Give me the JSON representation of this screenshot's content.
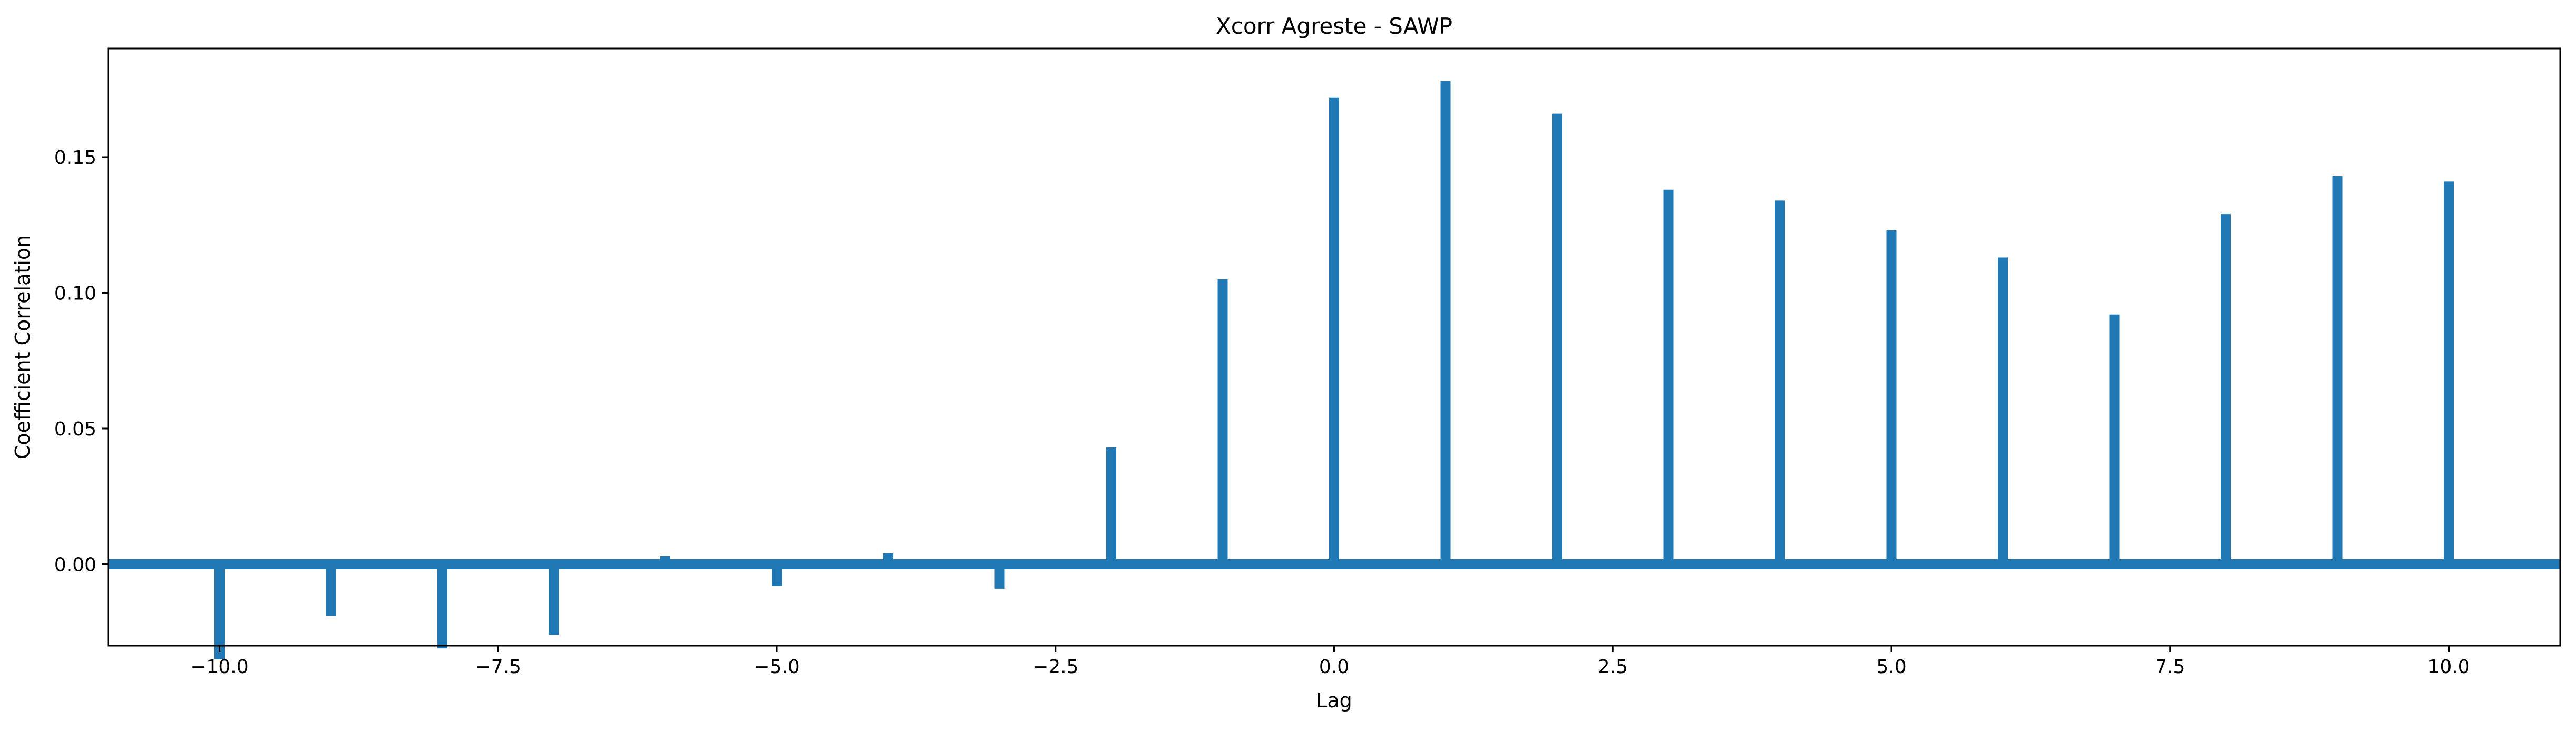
{
  "chart_data": {
    "type": "bar",
    "title": "Xcorr Agreste - SAWP",
    "xlabel": "Lag",
    "ylabel": "Coefficient Correlation",
    "xlim": [
      -11,
      11
    ],
    "ylim": [
      -0.03,
      0.19
    ],
    "xticks": [
      -10.0,
      -7.5,
      -5.0,
      -2.5,
      0.0,
      2.5,
      5.0,
      7.5,
      10.0
    ],
    "xtick_labels": [
      "−10.0",
      "−7.5",
      "−5.0",
      "−2.5",
      "0.0",
      "2.5",
      "5.0",
      "7.5",
      "10.0"
    ],
    "yticks": [
      0.0,
      0.05,
      0.1,
      0.15
    ],
    "ytick_labels": [
      "0.00",
      "0.05",
      "0.10",
      "0.15"
    ],
    "baseline": 0,
    "grid": false,
    "color": "#1f77b4",
    "lags": [
      -10,
      -9,
      -8,
      -7,
      -6,
      -5,
      -4,
      -3,
      -2,
      -1,
      0,
      1,
      2,
      3,
      4,
      5,
      6,
      7,
      8,
      9,
      10
    ],
    "values": [
      -0.035,
      -0.019,
      -0.031,
      -0.026,
      0.003,
      -0.008,
      0.004,
      -0.009,
      0.043,
      0.105,
      0.172,
      0.178,
      0.166,
      0.138,
      0.134,
      0.123,
      0.113,
      0.092,
      0.129,
      0.143,
      0.141
    ]
  }
}
